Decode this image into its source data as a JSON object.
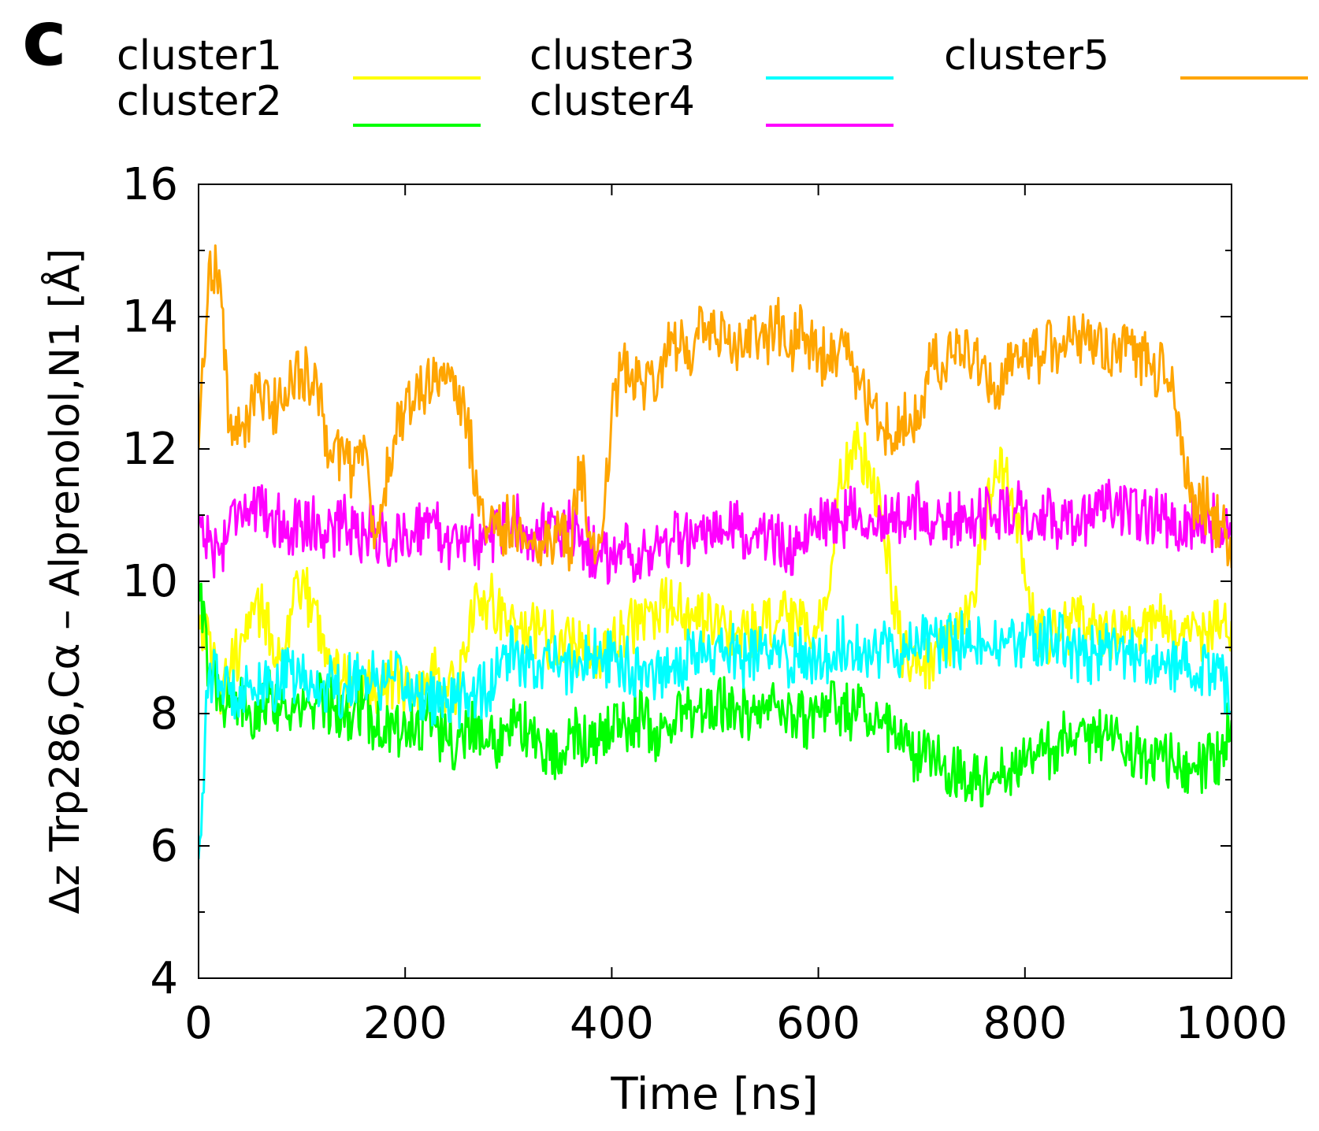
{
  "panel_label": "c",
  "chart_data": {
    "type": "line",
    "title": "",
    "xlabel": "Time [ns]",
    "ylabel": "Δz Trp286,Cα – Alprenolol,N1 [Å]",
    "xlim": [
      0,
      1000
    ],
    "ylim": [
      4,
      16
    ],
    "x_ticks": [
      0,
      200,
      400,
      600,
      800,
      1000
    ],
    "y_ticks": [
      4,
      6,
      8,
      10,
      12,
      14,
      16
    ],
    "x_tick_labels": [
      "0",
      "200",
      "400",
      "600",
      "800",
      "1000"
    ],
    "y_tick_labels": [
      "4",
      "6",
      "8",
      "10",
      "12",
      "14",
      "16"
    ],
    "grid": false,
    "legend_position": "top, outside plot area",
    "x_step": 10,
    "series": [
      {
        "name": "cluster1",
        "color": "#ffff00",
        "values": [
          9.5,
          9.2,
          8.3,
          8.6,
          9.0,
          9.3,
          9.6,
          9.2,
          8.8,
          9.5,
          9.9,
          9.6,
          9.2,
          8.7,
          8.5,
          8.5,
          8.6,
          8.5,
          8.3,
          8.6,
          8.4,
          8.3,
          8.5,
          8.6,
          8.4,
          8.4,
          9.0,
          9.8,
          9.7,
          9.6,
          9.4,
          9.3,
          9.3,
          9.2,
          9.1,
          9.2,
          9.1,
          9.0,
          8.9,
          8.9,
          9.0,
          9.2,
          9.3,
          9.4,
          9.5,
          9.6,
          9.6,
          9.5,
          9.4,
          9.4,
          9.4,
          9.3,
          9.2,
          9.2,
          9.2,
          9.3,
          9.4,
          9.4,
          9.3,
          9.2,
          9.3,
          9.8,
          11.5,
          11.9,
          12.0,
          11.7,
          11.2,
          10.0,
          9.0,
          8.7,
          8.7,
          8.8,
          9.0,
          9.2,
          9.5,
          9.8,
          10.8,
          11.5,
          11.7,
          11.1,
          10.0,
          9.4,
          9.2,
          9.2,
          9.3,
          9.4,
          9.3,
          9.2,
          9.2,
          9.2,
          9.3,
          9.3,
          9.4,
          9.4,
          9.3,
          9.2,
          9.1,
          9.2,
          9.3,
          9.4,
          9.4
        ]
      },
      {
        "name": "cluster2",
        "color": "#00ff00",
        "values": [
          10.0,
          8.6,
          8.3,
          8.1,
          8.2,
          8.0,
          8.2,
          8.3,
          8.1,
          8.0,
          8.0,
          8.1,
          8.2,
          8.1,
          8.0,
          8.0,
          8.2,
          7.8,
          7.8,
          7.7,
          7.9,
          7.7,
          7.9,
          7.8,
          7.6,
          7.5,
          7.8,
          7.9,
          7.5,
          7.6,
          7.7,
          7.9,
          7.7,
          7.6,
          7.3,
          7.4,
          7.7,
          7.6,
          7.5,
          7.6,
          7.8,
          7.8,
          7.9,
          7.9,
          7.7,
          7.8,
          7.9,
          8.0,
          8.1,
          8.0,
          8.1,
          8.1,
          8.0,
          8.0,
          8.1,
          8.2,
          8.1,
          8.0,
          8.0,
          7.9,
          8.1,
          8.2,
          8.1,
          8.0,
          8.1,
          8.0,
          7.9,
          7.8,
          7.9,
          7.3,
          7.3,
          7.3,
          7.2,
          7.2,
          7.1,
          7.1,
          7.0,
          7.1,
          7.2,
          7.1,
          7.2,
          7.3,
          7.4,
          7.5,
          7.7,
          7.7,
          7.6,
          7.8,
          7.6,
          7.7,
          7.5,
          7.4,
          7.3,
          7.4,
          7.3,
          7.2,
          7.1,
          7.2,
          7.3,
          7.4,
          7.9
        ]
      },
      {
        "name": "cluster3",
        "color": "#00ffff",
        "values": [
          5.8,
          8.6,
          8.5,
          8.3,
          8.4,
          8.5,
          8.3,
          8.4,
          8.5,
          8.6,
          8.5,
          8.4,
          8.4,
          8.5,
          8.3,
          8.6,
          8.6,
          8.5,
          8.4,
          8.5,
          8.4,
          8.3,
          8.3,
          8.2,
          8.1,
          8.2,
          8.3,
          8.4,
          8.3,
          8.6,
          8.9,
          8.8,
          8.7,
          8.8,
          8.8,
          8.7,
          8.7,
          8.8,
          8.9,
          8.8,
          8.8,
          8.8,
          8.7,
          8.7,
          8.6,
          8.7,
          8.8,
          8.8,
          8.9,
          8.9,
          9.0,
          9.0,
          8.9,
          8.8,
          8.9,
          8.9,
          8.9,
          8.8,
          8.9,
          8.8,
          8.9,
          8.9,
          9.0,
          9.1,
          9.0,
          8.9,
          9.0,
          9.1,
          8.9,
          9.0,
          9.1,
          9.2,
          9.0,
          9.1,
          9.1,
          9.0,
          9.1,
          9.0,
          9.0,
          9.0,
          9.1,
          9.2,
          9.1,
          9.2,
          9.0,
          8.9,
          8.9,
          8.9,
          9.0,
          8.9,
          8.9,
          8.8,
          8.8,
          8.7,
          8.7,
          8.8,
          8.6,
          8.7,
          8.6,
          8.5,
          8.0
        ]
      },
      {
        "name": "cluster4",
        "color": "#ff00ff",
        "values": [
          11.0,
          10.6,
          10.4,
          10.9,
          11.2,
          11.1,
          11.0,
          11.0,
          10.9,
          10.8,
          10.9,
          10.9,
          10.7,
          10.8,
          10.9,
          10.8,
          10.7,
          10.8,
          10.6,
          10.6,
          10.7,
          10.8,
          10.9,
          10.8,
          10.6,
          10.7,
          10.6,
          10.6,
          10.7,
          10.7,
          10.9,
          10.9,
          10.7,
          10.8,
          10.8,
          10.6,
          10.8,
          10.6,
          10.5,
          10.3,
          10.4,
          10.6,
          10.4,
          10.5,
          10.4,
          10.6,
          10.6,
          10.7,
          10.5,
          10.6,
          10.6,
          10.7,
          10.8,
          10.7,
          10.8,
          10.5,
          10.7,
          10.5,
          10.5,
          10.6,
          10.9,
          11.0,
          10.9,
          11.0,
          11.1,
          11.0,
          11.0,
          10.9,
          10.9,
          11.0,
          11.1,
          10.9,
          11.0,
          10.9,
          10.9,
          10.8,
          11.1,
          11.0,
          11.0,
          11.1,
          11.1,
          11.0,
          11.0,
          10.9,
          11.0,
          10.9,
          11.0,
          11.0,
          11.1,
          11.0,
          11.0,
          11.0,
          11.0,
          11.0,
          10.9,
          10.9,
          10.9,
          11.0,
          10.9,
          10.8,
          10.7
        ]
      },
      {
        "name": "cluster5",
        "color": "#ffa500",
        "values": [
          12.0,
          14.8,
          14.7,
          12.3,
          12.2,
          12.6,
          12.8,
          12.6,
          12.7,
          13.1,
          13.2,
          13.0,
          12.5,
          11.8,
          12.0,
          11.6,
          12.2,
          10.5,
          11.4,
          12.2,
          12.6,
          12.8,
          12.9,
          13.3,
          13.0,
          12.7,
          12.4,
          11.3,
          10.8,
          10.7,
          10.9,
          10.8,
          10.6,
          10.6,
          10.7,
          10.7,
          10.5,
          11.8,
          10.5,
          10.6,
          12.6,
          13.2,
          13.2,
          13.0,
          13.1,
          13.4,
          13.6,
          13.5,
          13.6,
          13.9,
          13.7,
          13.6,
          13.5,
          13.8,
          13.6,
          13.7,
          13.9,
          13.4,
          13.8,
          13.7,
          13.4,
          13.4,
          13.5,
          13.4,
          12.9,
          12.7,
          12.4,
          12.2,
          12.4,
          12.4,
          12.8,
          13.3,
          13.3,
          13.4,
          13.4,
          13.3,
          13.3,
          13.0,
          13.1,
          13.4,
          13.4,
          13.4,
          13.5,
          13.6,
          13.5,
          13.7,
          13.8,
          13.6,
          13.4,
          13.4,
          13.6,
          13.4,
          13.3,
          13.2,
          13.0,
          12.4,
          11.2,
          11.3,
          11.0,
          10.9,
          10.2
        ]
      }
    ]
  }
}
